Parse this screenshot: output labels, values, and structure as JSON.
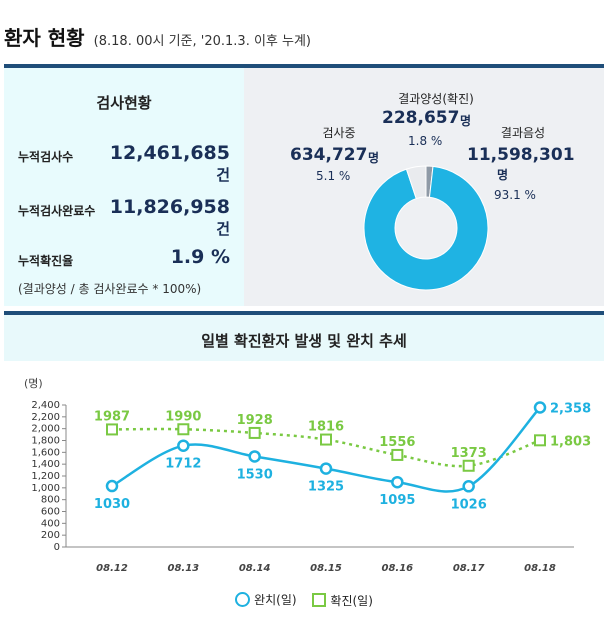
{
  "header": {
    "title": "환자 현황",
    "subtitle": "(8.18. 00시 기준, '20.1.3. 이후 누계)"
  },
  "test_status": {
    "title": "검사현황",
    "rows": [
      {
        "label": "누적검사수",
        "value": "12,461,685",
        "unit": "건"
      },
      {
        "label": "누적검사완료수",
        "value": "11,826,958",
        "unit": "건"
      },
      {
        "label": "누적확진율",
        "value": "1.9 %"
      }
    ],
    "note": "(결과양성 / 총 검사완료수 * 100%)"
  },
  "donut": {
    "testing": {
      "label": "검사중",
      "value": "634,727",
      "unit": "명",
      "percent": "5.1 %",
      "fraction": 0.051,
      "color": "#e9ebee"
    },
    "positive": {
      "label": "결과양성(확진)",
      "value": "228,657",
      "unit": "명",
      "percent": "1.8 %",
      "fraction": 0.018,
      "color": "#8f9aa6"
    },
    "negative": {
      "label": "결과음성",
      "value": "11,598,301",
      "unit": "명",
      "percent": "93.1 %",
      "fraction": 0.931,
      "color": "#1fb3e3"
    }
  },
  "chart_data": {
    "type": "line",
    "title": "일별 확진환자 발생 및 완치 추세",
    "ylabel": "(명)",
    "ylim": [
      0,
      2400
    ],
    "ytick_labels": [
      "2,400",
      "2,200",
      "2,000",
      "1,800",
      "1,600",
      "1,400",
      "1,200",
      "1,000",
      "800",
      "600",
      "400",
      "200",
      "0"
    ],
    "categories": [
      "08.12",
      "08.13",
      "08.14",
      "08.15",
      "08.16",
      "08.17",
      "08.18"
    ],
    "series": [
      {
        "name": "완치(일)",
        "values": [
          1030,
          1712,
          1530,
          1325,
          1095,
          1026,
          2358
        ],
        "labels": [
          "1030",
          "1712",
          "1530",
          "1325",
          "1095",
          "1026",
          "2,358"
        ],
        "color": "#1eb1e0",
        "marker": "circle"
      },
      {
        "name": "확진(일)",
        "values": [
          1987,
          1990,
          1928,
          1816,
          1556,
          1373,
          1803
        ],
        "labels": [
          "1987",
          "1990",
          "1928",
          "1816",
          "1556",
          "1373",
          "1,803"
        ],
        "color": "#7ac943",
        "marker": "square"
      }
    ],
    "legend": [
      "완치(일)",
      "확진(일)"
    ],
    "legend_position": "bottom",
    "grid": false
  }
}
